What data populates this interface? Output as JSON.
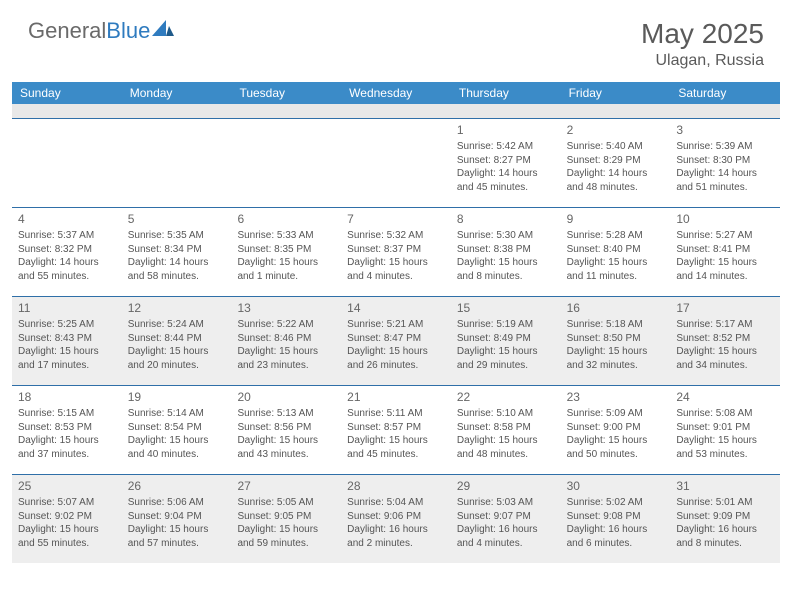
{
  "brand": {
    "text1": "General",
    "text2": "Blue"
  },
  "title": "May 2025",
  "location": "Ulagan, Russia",
  "header_bg": "#3b8bc8",
  "stripe_bg": "#e8e8e8",
  "week_border": "#2f6fa8",
  "shaded_bg": "#eeeeee",
  "text_color": "#555555",
  "day_headers": [
    "Sunday",
    "Monday",
    "Tuesday",
    "Wednesday",
    "Thursday",
    "Friday",
    "Saturday"
  ],
  "weeks": [
    {
      "shaded": false,
      "cells": [
        {
          "empty": true
        },
        {
          "empty": true
        },
        {
          "empty": true
        },
        {
          "empty": true
        },
        {
          "num": "1",
          "sunrise": "Sunrise: 5:42 AM",
          "sunset": "Sunset: 8:27 PM",
          "day1": "Daylight: 14 hours",
          "day2": "and 45 minutes."
        },
        {
          "num": "2",
          "sunrise": "Sunrise: 5:40 AM",
          "sunset": "Sunset: 8:29 PM",
          "day1": "Daylight: 14 hours",
          "day2": "and 48 minutes."
        },
        {
          "num": "3",
          "sunrise": "Sunrise: 5:39 AM",
          "sunset": "Sunset: 8:30 PM",
          "day1": "Daylight: 14 hours",
          "day2": "and 51 minutes."
        }
      ]
    },
    {
      "shaded": false,
      "cells": [
        {
          "num": "4",
          "sunrise": "Sunrise: 5:37 AM",
          "sunset": "Sunset: 8:32 PM",
          "day1": "Daylight: 14 hours",
          "day2": "and 55 minutes."
        },
        {
          "num": "5",
          "sunrise": "Sunrise: 5:35 AM",
          "sunset": "Sunset: 8:34 PM",
          "day1": "Daylight: 14 hours",
          "day2": "and 58 minutes."
        },
        {
          "num": "6",
          "sunrise": "Sunrise: 5:33 AM",
          "sunset": "Sunset: 8:35 PM",
          "day1": "Daylight: 15 hours",
          "day2": "and 1 minute."
        },
        {
          "num": "7",
          "sunrise": "Sunrise: 5:32 AM",
          "sunset": "Sunset: 8:37 PM",
          "day1": "Daylight: 15 hours",
          "day2": "and 4 minutes."
        },
        {
          "num": "8",
          "sunrise": "Sunrise: 5:30 AM",
          "sunset": "Sunset: 8:38 PM",
          "day1": "Daylight: 15 hours",
          "day2": "and 8 minutes."
        },
        {
          "num": "9",
          "sunrise": "Sunrise: 5:28 AM",
          "sunset": "Sunset: 8:40 PM",
          "day1": "Daylight: 15 hours",
          "day2": "and 11 minutes."
        },
        {
          "num": "10",
          "sunrise": "Sunrise: 5:27 AM",
          "sunset": "Sunset: 8:41 PM",
          "day1": "Daylight: 15 hours",
          "day2": "and 14 minutes."
        }
      ]
    },
    {
      "shaded": true,
      "cells": [
        {
          "num": "11",
          "sunrise": "Sunrise: 5:25 AM",
          "sunset": "Sunset: 8:43 PM",
          "day1": "Daylight: 15 hours",
          "day2": "and 17 minutes."
        },
        {
          "num": "12",
          "sunrise": "Sunrise: 5:24 AM",
          "sunset": "Sunset: 8:44 PM",
          "day1": "Daylight: 15 hours",
          "day2": "and 20 minutes."
        },
        {
          "num": "13",
          "sunrise": "Sunrise: 5:22 AM",
          "sunset": "Sunset: 8:46 PM",
          "day1": "Daylight: 15 hours",
          "day2": "and 23 minutes."
        },
        {
          "num": "14",
          "sunrise": "Sunrise: 5:21 AM",
          "sunset": "Sunset: 8:47 PM",
          "day1": "Daylight: 15 hours",
          "day2": "and 26 minutes."
        },
        {
          "num": "15",
          "sunrise": "Sunrise: 5:19 AM",
          "sunset": "Sunset: 8:49 PM",
          "day1": "Daylight: 15 hours",
          "day2": "and 29 minutes."
        },
        {
          "num": "16",
          "sunrise": "Sunrise: 5:18 AM",
          "sunset": "Sunset: 8:50 PM",
          "day1": "Daylight: 15 hours",
          "day2": "and 32 minutes."
        },
        {
          "num": "17",
          "sunrise": "Sunrise: 5:17 AM",
          "sunset": "Sunset: 8:52 PM",
          "day1": "Daylight: 15 hours",
          "day2": "and 34 minutes."
        }
      ]
    },
    {
      "shaded": false,
      "cells": [
        {
          "num": "18",
          "sunrise": "Sunrise: 5:15 AM",
          "sunset": "Sunset: 8:53 PM",
          "day1": "Daylight: 15 hours",
          "day2": "and 37 minutes."
        },
        {
          "num": "19",
          "sunrise": "Sunrise: 5:14 AM",
          "sunset": "Sunset: 8:54 PM",
          "day1": "Daylight: 15 hours",
          "day2": "and 40 minutes."
        },
        {
          "num": "20",
          "sunrise": "Sunrise: 5:13 AM",
          "sunset": "Sunset: 8:56 PM",
          "day1": "Daylight: 15 hours",
          "day2": "and 43 minutes."
        },
        {
          "num": "21",
          "sunrise": "Sunrise: 5:11 AM",
          "sunset": "Sunset: 8:57 PM",
          "day1": "Daylight: 15 hours",
          "day2": "and 45 minutes."
        },
        {
          "num": "22",
          "sunrise": "Sunrise: 5:10 AM",
          "sunset": "Sunset: 8:58 PM",
          "day1": "Daylight: 15 hours",
          "day2": "and 48 minutes."
        },
        {
          "num": "23",
          "sunrise": "Sunrise: 5:09 AM",
          "sunset": "Sunset: 9:00 PM",
          "day1": "Daylight: 15 hours",
          "day2": "and 50 minutes."
        },
        {
          "num": "24",
          "sunrise": "Sunrise: 5:08 AM",
          "sunset": "Sunset: 9:01 PM",
          "day1": "Daylight: 15 hours",
          "day2": "and 53 minutes."
        }
      ]
    },
    {
      "shaded": true,
      "cells": [
        {
          "num": "25",
          "sunrise": "Sunrise: 5:07 AM",
          "sunset": "Sunset: 9:02 PM",
          "day1": "Daylight: 15 hours",
          "day2": "and 55 minutes."
        },
        {
          "num": "26",
          "sunrise": "Sunrise: 5:06 AM",
          "sunset": "Sunset: 9:04 PM",
          "day1": "Daylight: 15 hours",
          "day2": "and 57 minutes."
        },
        {
          "num": "27",
          "sunrise": "Sunrise: 5:05 AM",
          "sunset": "Sunset: 9:05 PM",
          "day1": "Daylight: 15 hours",
          "day2": "and 59 minutes."
        },
        {
          "num": "28",
          "sunrise": "Sunrise: 5:04 AM",
          "sunset": "Sunset: 9:06 PM",
          "day1": "Daylight: 16 hours",
          "day2": "and 2 minutes."
        },
        {
          "num": "29",
          "sunrise": "Sunrise: 5:03 AM",
          "sunset": "Sunset: 9:07 PM",
          "day1": "Daylight: 16 hours",
          "day2": "and 4 minutes."
        },
        {
          "num": "30",
          "sunrise": "Sunrise: 5:02 AM",
          "sunset": "Sunset: 9:08 PM",
          "day1": "Daylight: 16 hours",
          "day2": "and 6 minutes."
        },
        {
          "num": "31",
          "sunrise": "Sunrise: 5:01 AM",
          "sunset": "Sunset: 9:09 PM",
          "day1": "Daylight: 16 hours",
          "day2": "and 8 minutes."
        }
      ]
    }
  ]
}
